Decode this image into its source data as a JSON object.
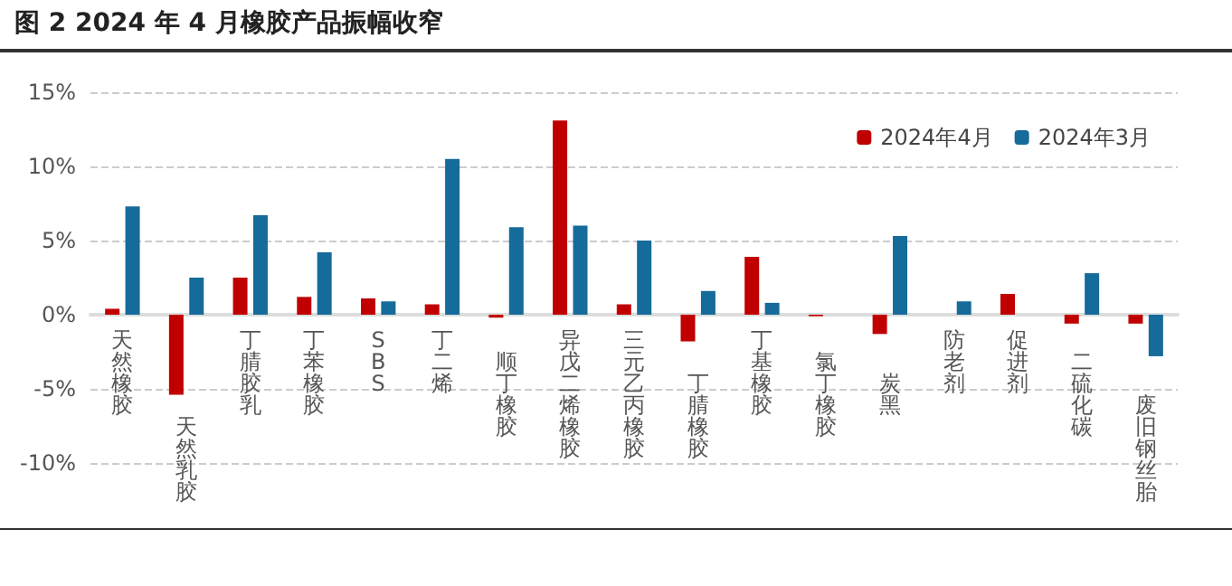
{
  "chart_data": {
    "type": "bar",
    "title": "图 2 2024 年 4 月橡胶产品振幅收窄",
    "categories": [
      "天然橡胶",
      "天然乳胶",
      "丁腈胶乳",
      "丁苯橡胶",
      "SBS",
      "丁二烯",
      "顺丁橡胶",
      "异戊二烯橡胶",
      "三元乙丙橡胶",
      "丁腈橡胶",
      "丁基橡胶",
      "氯丁橡胶",
      "炭黑",
      "防老剂",
      "促进剂",
      "二硫化碳",
      "废旧钢丝胎"
    ],
    "series": [
      {
        "name": "2024年4月",
        "color": "#c00000",
        "values": [
          0.4,
          -5.4,
          2.5,
          1.2,
          1.1,
          0.7,
          -0.2,
          13.1,
          0.7,
          -1.8,
          3.9,
          -0.1,
          -1.3,
          null,
          1.4,
          -0.6,
          -0.6
        ]
      },
      {
        "name": "2024年3月",
        "color": "#156b9a",
        "values": [
          7.3,
          2.5,
          6.7,
          4.2,
          0.9,
          10.5,
          5.9,
          6.0,
          5.0,
          1.6,
          0.8,
          null,
          5.3,
          0.9,
          null,
          2.8,
          -2.8
        ]
      }
    ],
    "ylim": [
      -10,
      15
    ],
    "yticks": [
      {
        "value": -10,
        "label": "-10%"
      },
      {
        "value": -5,
        "label": "-5%"
      },
      {
        "value": 0,
        "label": "0%"
      },
      {
        "value": 5,
        "label": "5%"
      },
      {
        "value": 10,
        "label": "10%"
      },
      {
        "value": 15,
        "label": "15%"
      }
    ],
    "grid": "y",
    "legend": "top right"
  }
}
